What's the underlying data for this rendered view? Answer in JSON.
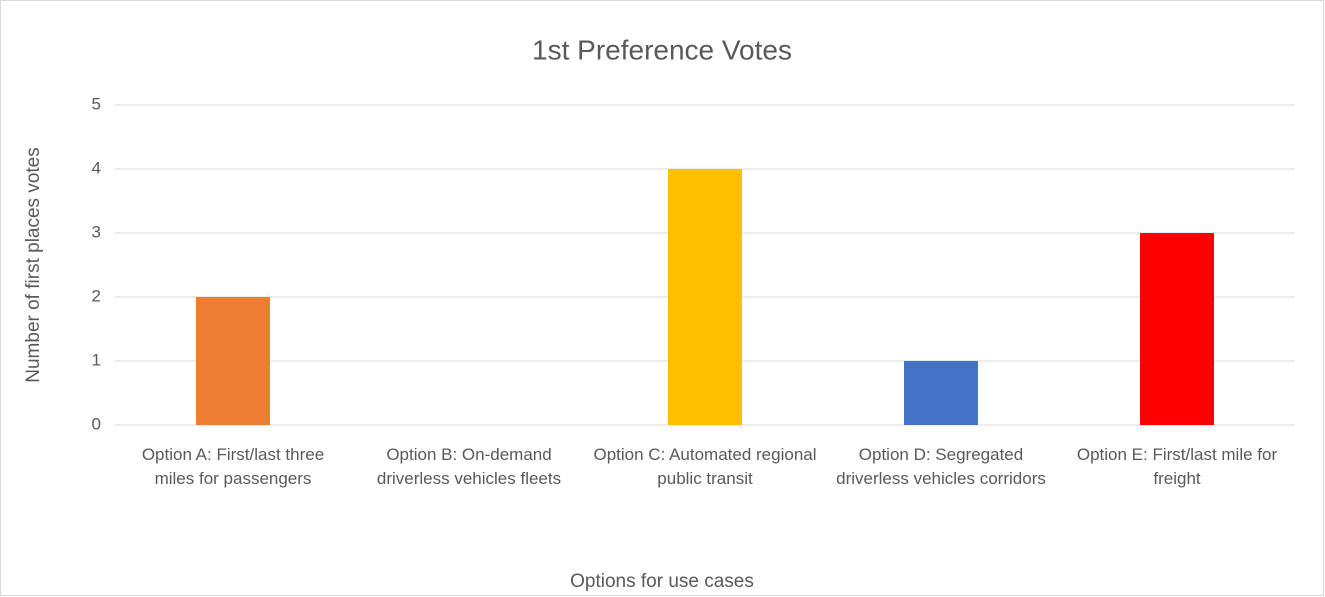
{
  "chart_data": {
    "type": "bar",
    "title": "1st Preference Votes",
    "x_label": "Options for use cases",
    "y_label": "Number of first places votes",
    "categories": [
      "Option A: First/last three miles for passengers",
      "Option B: On-demand driverless vehicles fleets",
      "Option C: Automated regional public transit",
      "Option D: Segregated driverless vehicles corridors",
      "Option E: First/last mile for freight"
    ],
    "values": [
      2,
      0,
      4,
      1,
      3
    ],
    "colors": [
      "#ed7d31",
      "#a5a5a5",
      "#ffc000",
      "#4472c4",
      "#ff0000"
    ],
    "ylim": [
      0,
      5
    ],
    "yticks": [
      0,
      1,
      2,
      3,
      4,
      5
    ],
    "grid": true
  }
}
